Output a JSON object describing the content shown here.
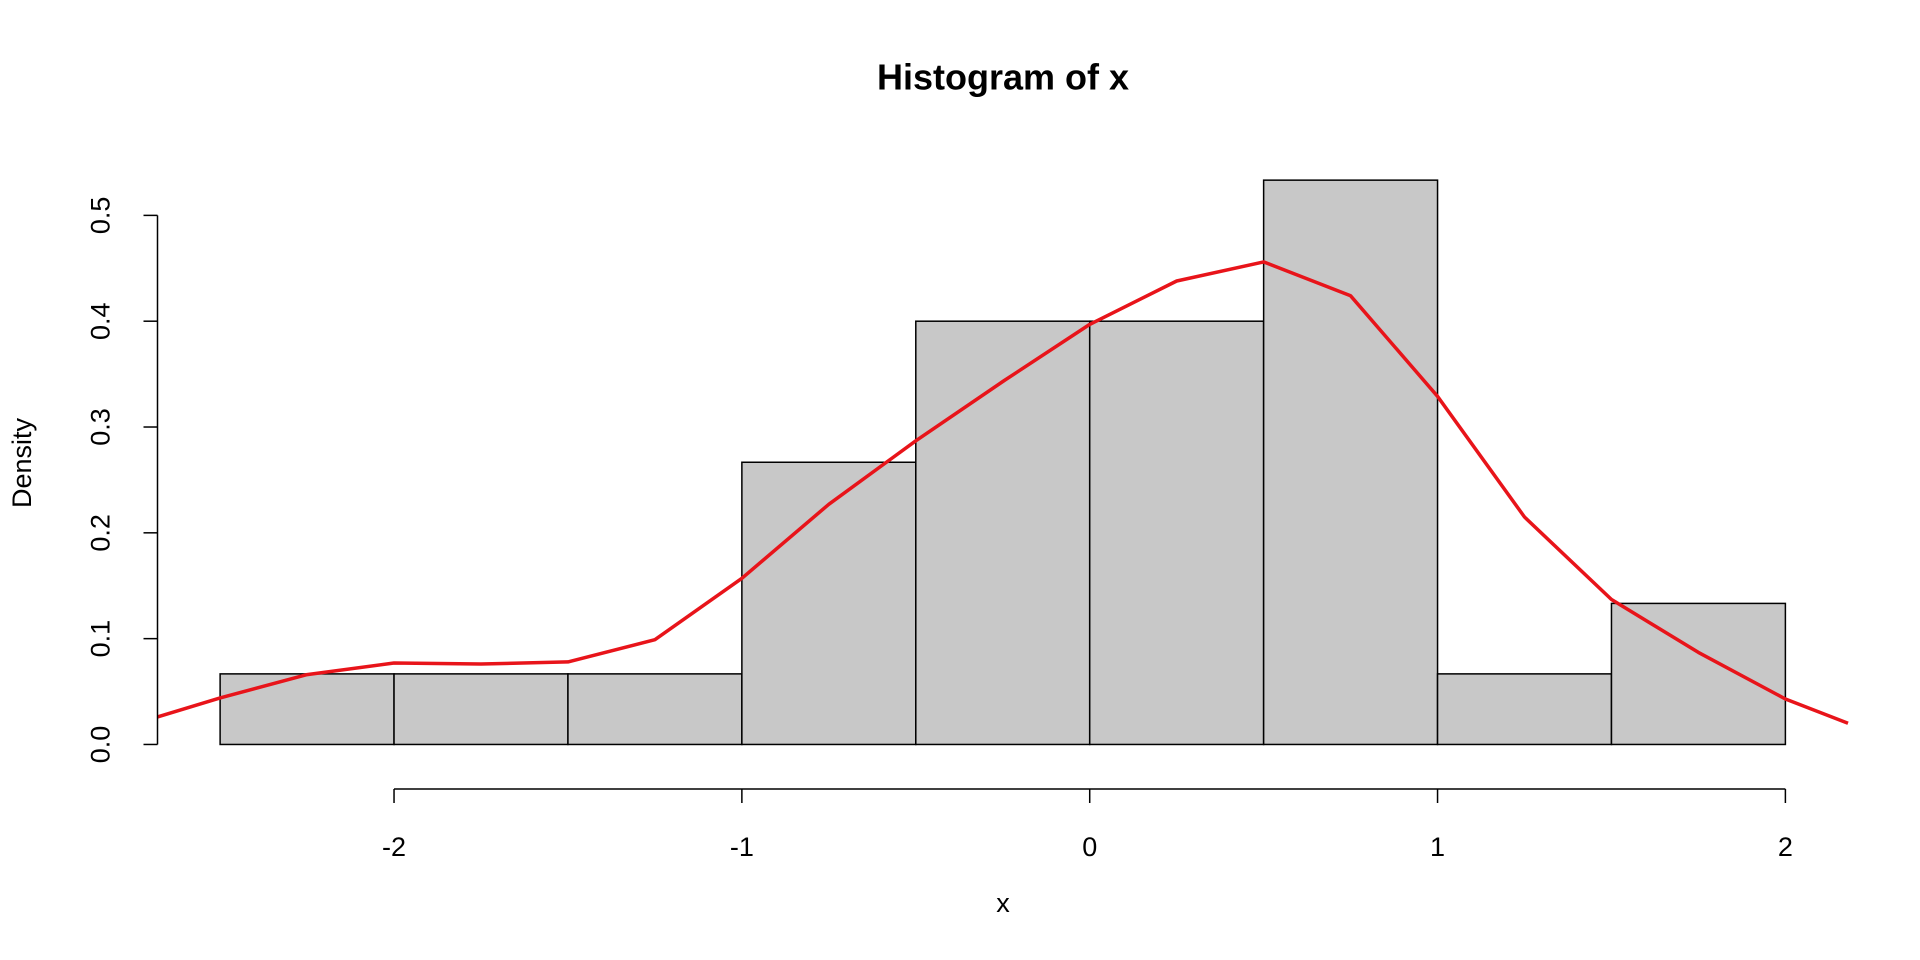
{
  "chart_data": {
    "type": "histogram",
    "title": "Histogram of x",
    "x_label": "x",
    "y_label": "Density",
    "bins": [
      -2.5,
      -2.0,
      -1.5,
      -1.0,
      -0.5,
      0.0,
      0.5,
      1.0,
      1.5,
      2.0
    ],
    "values": [
      0.0667,
      0.0667,
      0.0667,
      0.2667,
      0.4,
      0.4,
      0.5333,
      0.0667,
      0.1333
    ],
    "color": "#c8c8c8",
    "line": {
      "color": "#e8141a",
      "x": [
        -2.68,
        -2.5,
        -2.25,
        -2.0,
        -1.75,
        -1.5,
        -1.25,
        -1.0,
        -0.75,
        -0.5,
        -0.25,
        0.0,
        0.25,
        0.5,
        0.75,
        1.0,
        1.25,
        1.5,
        1.75,
        2.0,
        2.18
      ],
      "values": [
        0.026,
        0.044,
        0.066,
        0.077,
        0.076,
        0.078,
        0.099,
        0.157,
        0.227,
        0.287,
        0.343,
        0.397,
        0.438,
        0.456,
        0.424,
        0.329,
        0.215,
        0.137,
        0.087,
        0.043,
        0.02
      ]
    },
    "xlim": [
      -2.68,
      2.18
    ],
    "ylim": [
      -0.0213,
      0.5547
    ],
    "xticks": [
      -2,
      -1,
      0,
      1,
      2
    ],
    "yticks": [
      {
        "value": 0,
        "label": "0.0"
      },
      0.1,
      0.2,
      0.3,
      0.4,
      0.5
    ]
  }
}
